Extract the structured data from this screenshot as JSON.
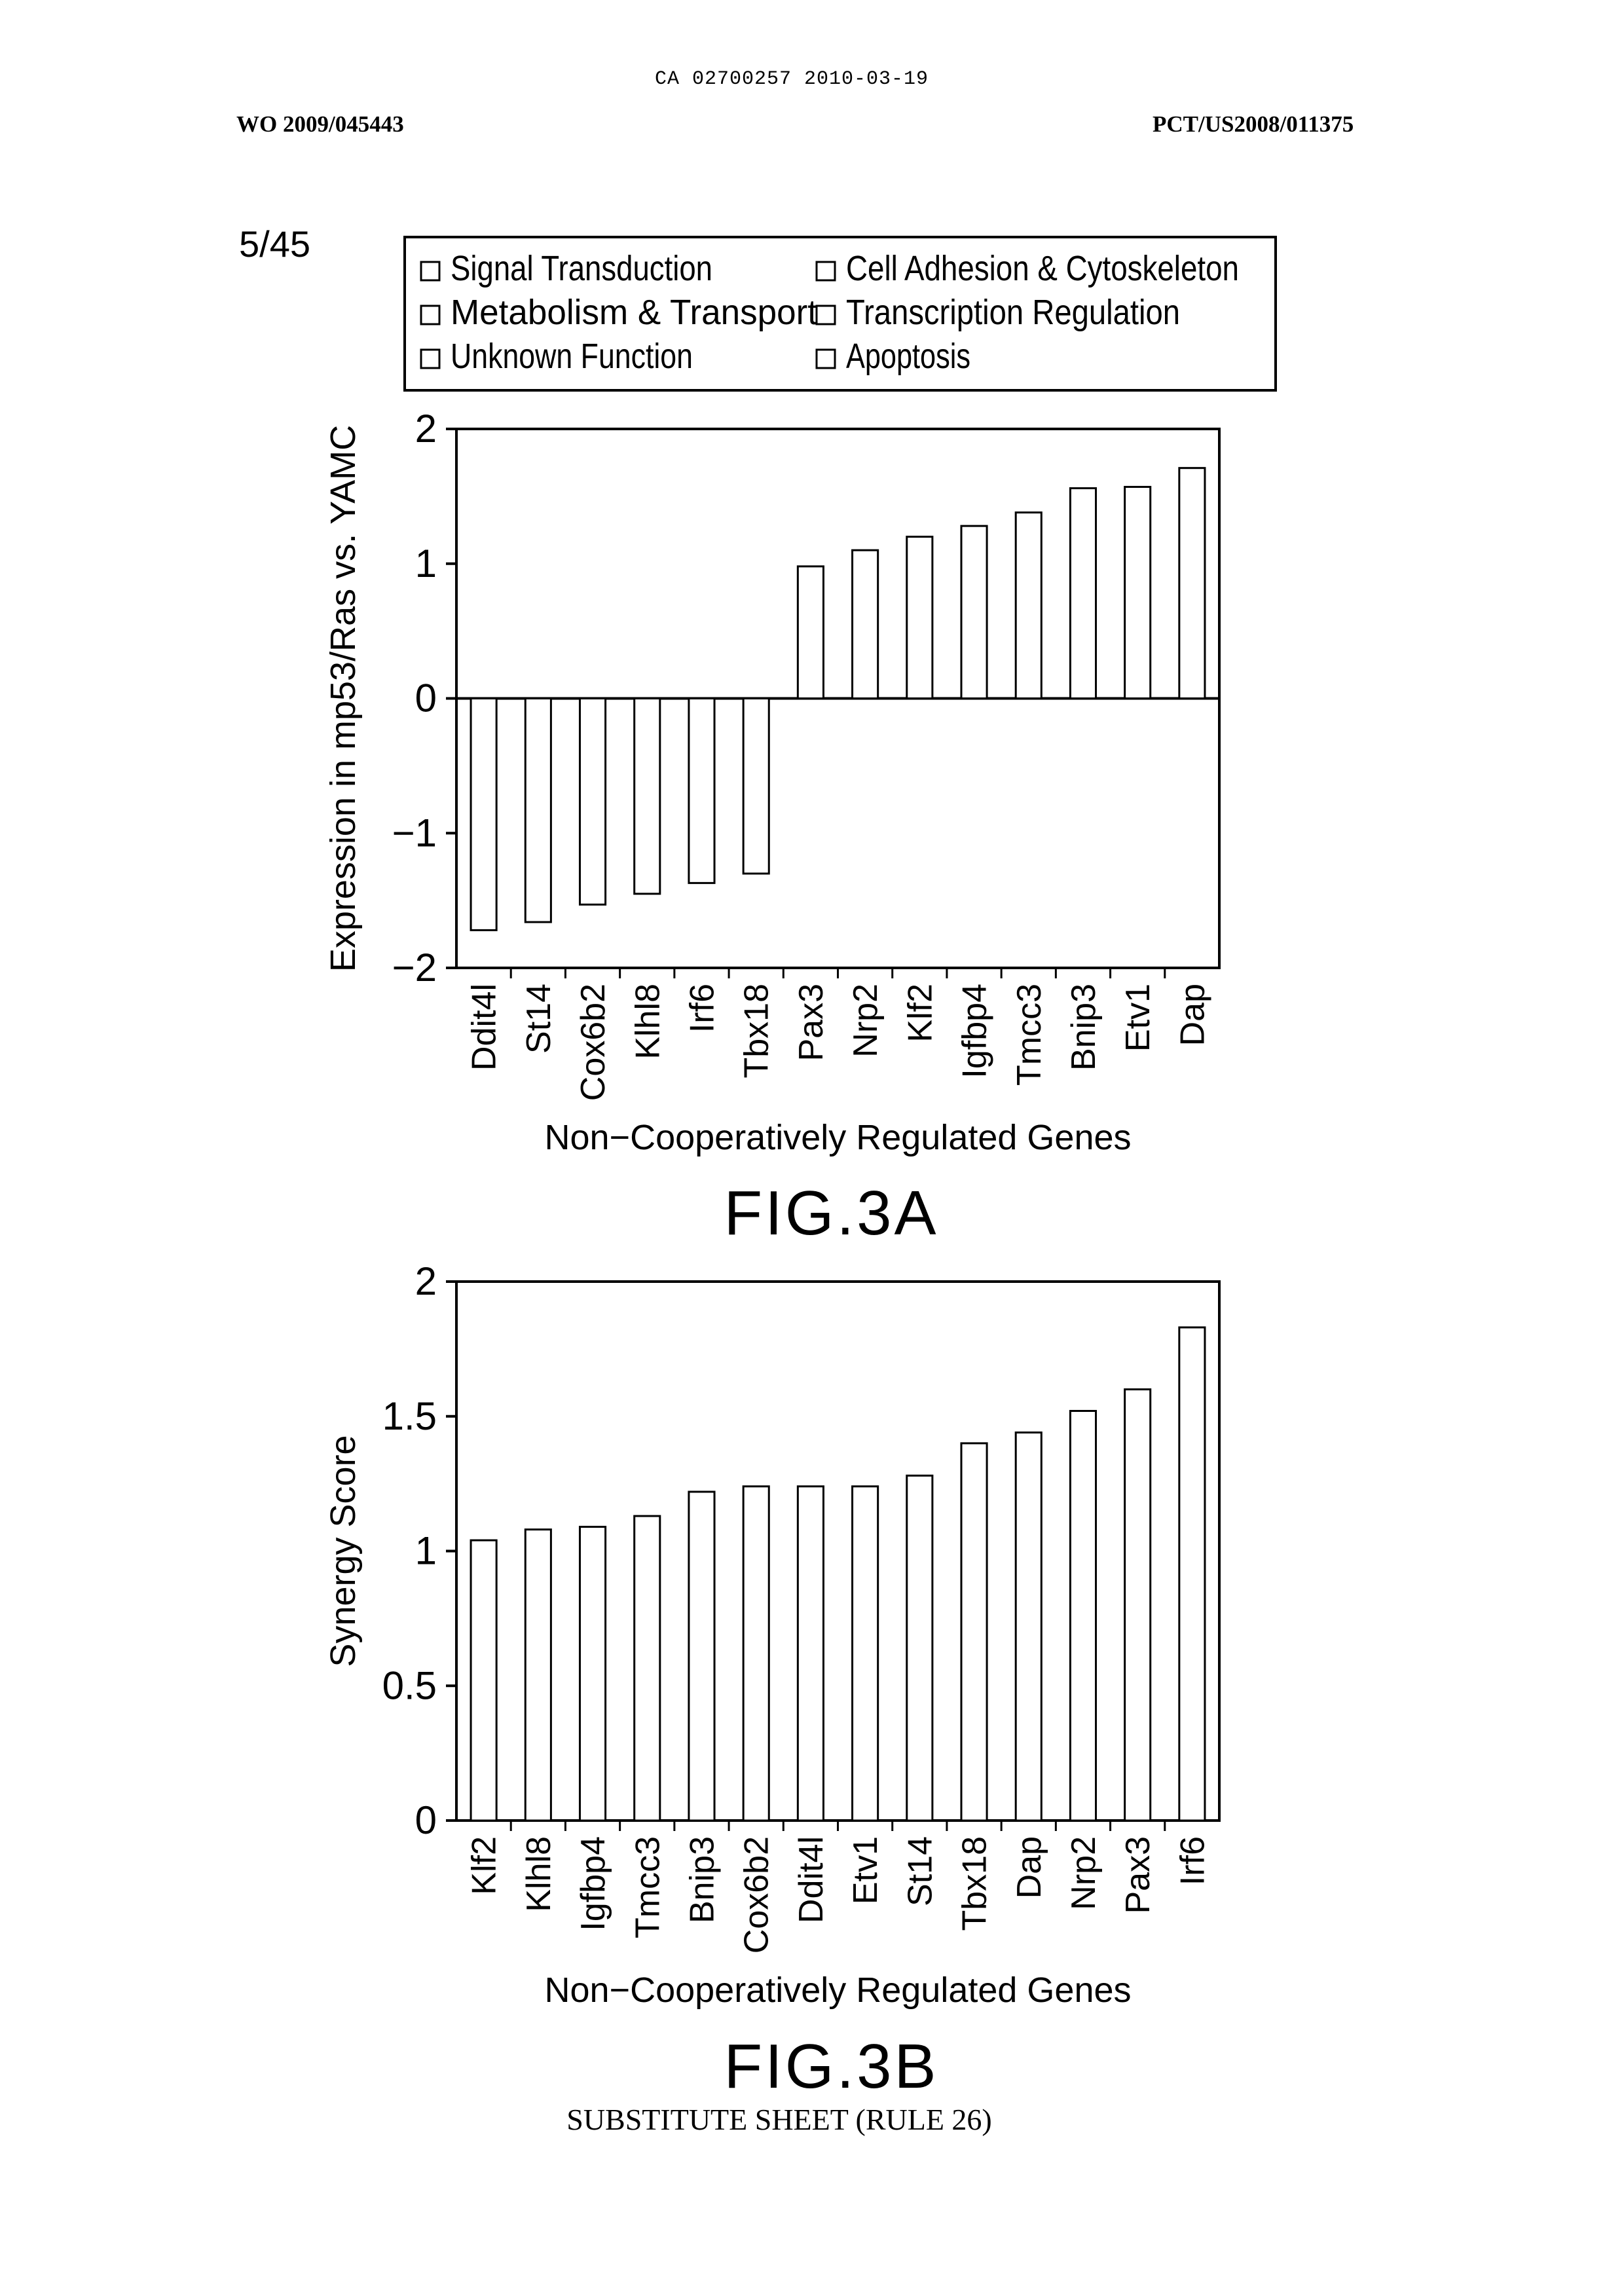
{
  "header": {
    "ca_number": "CA 02700257 2010-03-19",
    "wo_number": "WO 2009/045443",
    "pct_number": "PCT/US2008/011375",
    "sheet": "5/45"
  },
  "footer": "SUBSTITUTE SHEET (RULE 26)",
  "legend": {
    "items": [
      "Signal Transduction",
      "Metabolism & Transport",
      "Unknown Function",
      "Cell Adhesion & Cytoskeleton",
      "Transcription Regulation",
      "Apoptosis"
    ]
  },
  "chart_data": [
    {
      "type": "bar",
      "figure_label": "FIG.3A",
      "categories": [
        "Ddit4l",
        "St14",
        "Cox6b2",
        "Klhl8",
        "Irf6",
        "Tbx18",
        "Pax3",
        "Nrp2",
        "Klf2",
        "Igfbp4",
        "Tmcc3",
        "Bnip3",
        "Etv1",
        "Dap"
      ],
      "values": [
        -1.72,
        -1.66,
        -1.53,
        -1.45,
        -1.37,
        -1.3,
        0.98,
        1.1,
        1.2,
        1.28,
        1.38,
        1.56,
        1.57,
        1.71
      ],
      "xlabel": "Non−Cooperatively Regulated Genes",
      "ylabel": "Expression in mp53/Ras vs. YAMC",
      "ylim": [
        -2,
        2
      ],
      "yticks": [
        2,
        1,
        0,
        -1,
        -2
      ],
      "ytick_labels": [
        "2",
        "1",
        "0",
        "−1",
        "−2"
      ],
      "grid": false
    },
    {
      "type": "bar",
      "figure_label": "FIG.3B",
      "categories": [
        "Klf2",
        "Klhl8",
        "Igfbp4",
        "Tmcc3",
        "Bnip3",
        "Cox6b2",
        "Ddit4l",
        "Etv1",
        "St14",
        "Tbx18",
        "Dap",
        "Nrp2",
        "Pax3",
        "Irf6"
      ],
      "values": [
        1.04,
        1.08,
        1.09,
        1.13,
        1.22,
        1.24,
        1.24,
        1.24,
        1.28,
        1.4,
        1.44,
        1.52,
        1.6,
        1.83
      ],
      "xlabel": "Non−Cooperatively Regulated Genes",
      "ylabel": "Synergy Score",
      "ylim": [
        0,
        2
      ],
      "yticks": [
        2,
        1.5,
        1,
        0.5,
        0
      ],
      "ytick_labels": [
        "2",
        "1.5",
        "1",
        "0.5",
        "0"
      ],
      "grid": false
    }
  ]
}
